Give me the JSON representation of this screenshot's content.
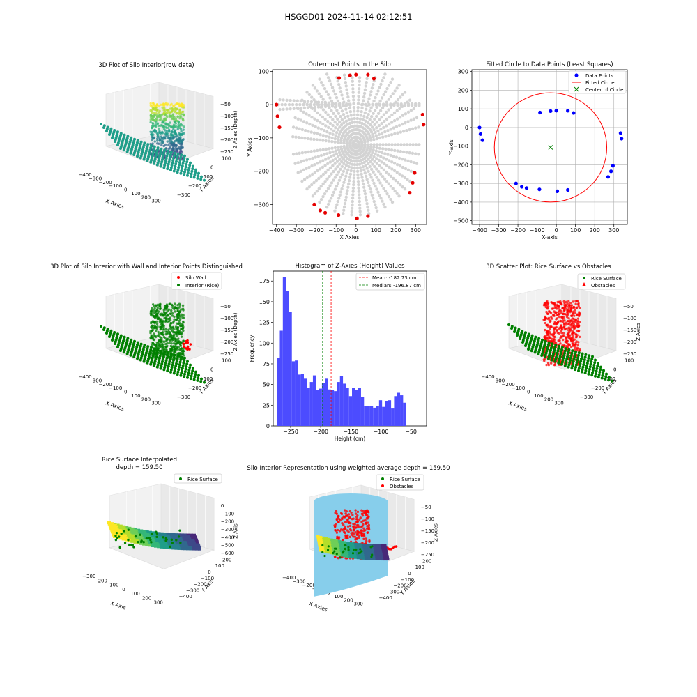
{
  "suptitle": "HSGGD01 2024-11-14 02:12:51",
  "chart_data": [
    {
      "type": "scatter",
      "title": "3D Plot of Silo Interior(row data)",
      "xlabel": "X Axies",
      "ylabel": "Y Axies",
      "zlabel": "Z Axies (Depth)",
      "x_ticks": [
        "−400",
        "−300",
        "−200",
        "−100",
        "0",
        "100",
        "200",
        "300"
      ],
      "y_ticks": [
        "100",
        "0",
        "−100",
        "−200",
        "−300"
      ],
      "z_ticks": [
        "−50",
        "−100",
        "−150",
        "−200",
        "−250"
      ],
      "colormap": "viridis"
    },
    {
      "type": "scatter",
      "title": "Outermost Points in the Silo",
      "xlabel": "X Axies",
      "ylabel": "Y Axies",
      "xlim": [
        -420,
        355
      ],
      "ylim": [
        -360,
        105
      ],
      "x_ticks": [
        "−400",
        "−300",
        "−200",
        "−100",
        "0",
        "100",
        "200",
        "300"
      ],
      "y_ticks": [
        "100",
        "0",
        "−100",
        "−200",
        "−300"
      ],
      "outermost_points": [
        [
          -400,
          0
        ],
        [
          -395,
          -35
        ],
        [
          -385,
          -68
        ],
        [
          -85,
          80
        ],
        [
          -30,
          88
        ],
        [
          0,
          90
        ],
        [
          60,
          90
        ],
        [
          90,
          78
        ],
        [
          335,
          -30
        ],
        [
          340,
          -60
        ],
        [
          295,
          -205
        ],
        [
          285,
          -235
        ],
        [
          270,
          -265
        ],
        [
          -210,
          -300
        ],
        [
          -180,
          -318
        ],
        [
          -155,
          -325
        ],
        [
          -88,
          -332
        ],
        [
          5,
          -342
        ],
        [
          60,
          -335
        ]
      ],
      "colors": {
        "interior": "#d3d3d3",
        "outer": "#e50000"
      }
    },
    {
      "type": "scatter",
      "title": "Fitted Circle to Data Points (Least Squares)",
      "xlabel": "X-axis",
      "ylabel": "Y-axis",
      "xlim": [
        -440,
        370
      ],
      "ylim": [
        -520,
        310
      ],
      "x_ticks": [
        "−400",
        "−300",
        "−200",
        "−100",
        "0",
        "100",
        "200",
        "300"
      ],
      "y_ticks": [
        "300",
        "200",
        "100",
        "0",
        "−100",
        "−200",
        "−300",
        "−400",
        "−500"
      ],
      "legend": [
        "Data Points",
        "Fitted Circle",
        "Center of Circle"
      ],
      "data_points": [
        [
          -400,
          0
        ],
        [
          -395,
          -35
        ],
        [
          -385,
          -68
        ],
        [
          -85,
          80
        ],
        [
          -30,
          88
        ],
        [
          0,
          90
        ],
        [
          60,
          90
        ],
        [
          90,
          78
        ],
        [
          335,
          -30
        ],
        [
          340,
          -60
        ],
        [
          295,
          -205
        ],
        [
          285,
          -235
        ],
        [
          270,
          -265
        ],
        [
          -210,
          -300
        ],
        [
          -180,
          -318
        ],
        [
          -155,
          -325
        ],
        [
          -88,
          -332
        ],
        [
          5,
          -342
        ],
        [
          60,
          -335
        ]
      ],
      "circle": {
        "cx": -30,
        "cy": -107,
        "r": 293
      },
      "colors": {
        "points": "#0000ff",
        "circle": "#ff0000",
        "center": "#008000"
      }
    },
    {
      "type": "scatter",
      "title": "3D Plot of Silo Interior with Wall and Interior Points Distinguished",
      "xlabel": "X Axies",
      "ylabel": "Y Axies",
      "zlabel": "Z Axies (Depth)",
      "legend": [
        "Silo Wall",
        "Interior (Rice)"
      ],
      "x_ticks": [
        "−400",
        "−300",
        "−200",
        "−100",
        "0",
        "100",
        "200",
        "300"
      ],
      "y_ticks": [
        "100",
        "0",
        "−100",
        "−200",
        "−300"
      ],
      "z_ticks": [
        "−50",
        "−100",
        "−150",
        "−200",
        "−250"
      ],
      "colors": {
        "wall": "#ff0000",
        "interior": "#008000"
      }
    },
    {
      "type": "bar",
      "title": "Histogram of Z-Axies (Height) Values",
      "xlabel": "Height (cm)",
      "ylabel": "Frequency",
      "xlim": [
        -279,
        -24
      ],
      "ylim": [
        0,
        187
      ],
      "x_ticks": [
        -250,
        -200,
        -150,
        -100,
        -50
      ],
      "y_ticks": [
        0,
        25,
        50,
        75,
        100,
        125,
        150,
        175
      ],
      "bin_start": -273,
      "bin_width": 5,
      "values": [
        82,
        115,
        180,
        163,
        138,
        78,
        79,
        62,
        63,
        57,
        46,
        53,
        61,
        43,
        45,
        52,
        57,
        44,
        43,
        42,
        53,
        60,
        51,
        46,
        36,
        46,
        43,
        46,
        35,
        24,
        24,
        24,
        22,
        24,
        31,
        23,
        30,
        31,
        21,
        36,
        40,
        37,
        28
      ],
      "mean": -182.73,
      "median": -196.87,
      "legend": [
        "Mean: -182.73 cm",
        "Median: -196.87 cm"
      ],
      "colors": {
        "bars": "#4c4cff",
        "mean": "#ff0000",
        "median": "#008000"
      }
    },
    {
      "type": "scatter",
      "title": "3D Scatter Plot: Rice Surface vs Obstacles",
      "xlabel": "X Axies",
      "ylabel": "Y Axies",
      "zlabel": "Z Axies",
      "legend": [
        "Rice Surface",
        "Obstacles"
      ],
      "x_ticks": [
        "−400",
        "−300",
        "−200",
        "−100",
        "0",
        "100",
        "200",
        "300"
      ],
      "y_ticks": [
        "100",
        "0",
        "−100",
        "−200",
        "−300"
      ],
      "z_ticks": [
        "−50",
        "−100",
        "−150",
        "−200",
        "−250"
      ],
      "colors": {
        "rice": "#008000",
        "obstacles": "#ff0000"
      }
    },
    {
      "type": "scatter",
      "title": "Rice Surface Interpolated",
      "subtitle": "depth = 159.50",
      "xlabel": "X Axis",
      "ylabel": "Y Axis",
      "zlabel": "Z Axis",
      "legend": [
        "Rice Surface"
      ],
      "x_ticks": [
        "−300",
        "−200",
        "−100",
        "0",
        "100",
        "200",
        "300"
      ],
      "y_ticks": [
        "200",
        "100",
        "0",
        "−100",
        "−200",
        "−300",
        "−400"
      ],
      "z_ticks": [
        "0",
        "−100",
        "−200",
        "−300",
        "−400",
        "−500",
        "−600"
      ],
      "colors": {
        "rice": "#008000"
      }
    },
    {
      "type": "scatter",
      "title": "Silo Interior Representation using weighted average depth = 159.50",
      "xlabel": "X Axies",
      "ylabel": "Y Axies",
      "zlabel": "Z Axies",
      "legend": [
        "Rice Surface",
        "Obstacles"
      ],
      "x_ticks": [
        "−400",
        "−300",
        "−200",
        "−100",
        "0",
        "100",
        "200",
        "300"
      ],
      "y_ticks": [
        "200",
        "100",
        "0",
        "−100",
        "−200",
        "−300",
        "−400"
      ],
      "z_ticks": [
        "−50",
        "−100",
        "−150",
        "−200",
        "−250"
      ],
      "colors": {
        "rice": "#008000",
        "obstacles": "#ff0000",
        "silo": "#87ceeb"
      }
    }
  ]
}
